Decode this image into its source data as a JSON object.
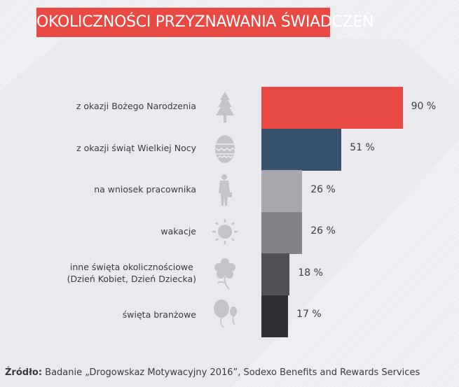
{
  "title": "OKOLICZNOŚCI PRZYZNAWANIA ŚWIADCZEŃ",
  "chart_data": {
    "type": "bar",
    "orientation": "horizontal",
    "title": "OKOLICZNOŚCI PRZYZNAWANIA ŚWIADCZEŃ",
    "categories": [
      "z okazji Bożego Narodzenia",
      "z okazji świąt Wielkiej Nocy",
      "na wniosek pracownika",
      "wakacje",
      "inne święta okolicznościowe (Dzień Kobiet, Dzień Dziecka)",
      "święta branżowe"
    ],
    "category_lines": [
      [
        "z okazji Bożego Narodzenia"
      ],
      [
        "z okazji świąt Wielkiej Nocy"
      ],
      [
        "na wniosek pracownika"
      ],
      [
        "wakacje"
      ],
      [
        "inne święta okolicznościowe",
        "(Dzień Kobiet, Dzień Dziecka)"
      ],
      [
        "święta branżowe"
      ]
    ],
    "values": [
      90,
      51,
      26,
      26,
      18,
      17
    ],
    "value_labels": [
      "90 %",
      "51 %",
      "26 %",
      "26 %",
      "18 %",
      "17 %"
    ],
    "colors": [
      "#e84a43",
      "#38526d",
      "#a7a7ad",
      "#828287",
      "#505057",
      "#2f2f35"
    ],
    "icons": [
      "tree-icon",
      "easter-egg-icon",
      "person-icon",
      "sun-icon",
      "flower-icon",
      "balloons-icon"
    ],
    "unit": "%",
    "xlim": [
      0,
      100
    ]
  },
  "source": {
    "label": "Źródło:",
    "text": " Badanie „Drogowskaz Motywacyjny 2016”, Sodexo Benefits and Rewards Services"
  }
}
